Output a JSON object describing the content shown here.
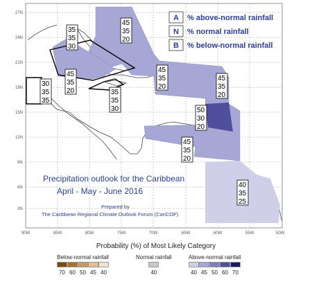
{
  "map": {
    "title_line1": "Precipitation outlook for the Caribbean",
    "title_line2": "April - May - June 2016",
    "prepared_line1": "Prepared by",
    "prepared_line2": "The Caribbean Regional Climate Outlook Forum (CariCOF)",
    "lat_ticks": [
      "27N",
      "24N",
      "21N",
      "18N",
      "15N",
      "12N",
      "9N",
      "6N",
      "3N"
    ],
    "lon_ticks": [
      "90W",
      "85W",
      "80W",
      "75W",
      "70W",
      "65W",
      "60W",
      "55W",
      "50W"
    ]
  },
  "key": {
    "a_letter": "A",
    "a_desc": "% above-normal rainfall",
    "n_letter": "N",
    "n_desc": "% normal rainfall",
    "b_letter": "B",
    "b_desc": "% below-normal rainfall"
  },
  "forecast_boxes": [
    {
      "a": "35",
      "n": "35",
      "b": "30"
    },
    {
      "a": "45",
      "n": "35",
      "b": "20"
    },
    {
      "a": "30",
      "n": "35",
      "b": "35"
    },
    {
      "a": "45",
      "n": "35",
      "b": "20"
    },
    {
      "a": "35",
      "n": "35",
      "b": "30"
    },
    {
      "a": "45",
      "n": "35",
      "b": "20"
    },
    {
      "a": "45",
      "n": "35",
      "b": "20"
    },
    {
      "a": "50",
      "n": "30",
      "b": "20"
    },
    {
      "a": "45",
      "n": "35",
      "b": "20"
    },
    {
      "a": "40",
      "n": "35",
      "b": "25"
    }
  ],
  "legend": {
    "title": "Probability (%) of Most Likely Category",
    "below": {
      "label": "Below-normal rainfall",
      "values": [
        "70",
        "60",
        "50",
        "45",
        "40"
      ],
      "colors": [
        "#7a4a12",
        "#a8702e",
        "#c99a5e",
        "#e3c08e",
        "#f4e3cc"
      ]
    },
    "normal": {
      "label": "Normal rainfall",
      "values": [
        "40"
      ],
      "colors": [
        "#c8c8c8"
      ]
    },
    "above": {
      "label": "Above-normal rainfall",
      "values": [
        "40",
        "45",
        "50",
        "60",
        "70"
      ],
      "colors": [
        "#cfcfea",
        "#a7a7d6",
        "#7d7dbf",
        "#4f4f9c",
        "#1c1c5c"
      ]
    }
  }
}
